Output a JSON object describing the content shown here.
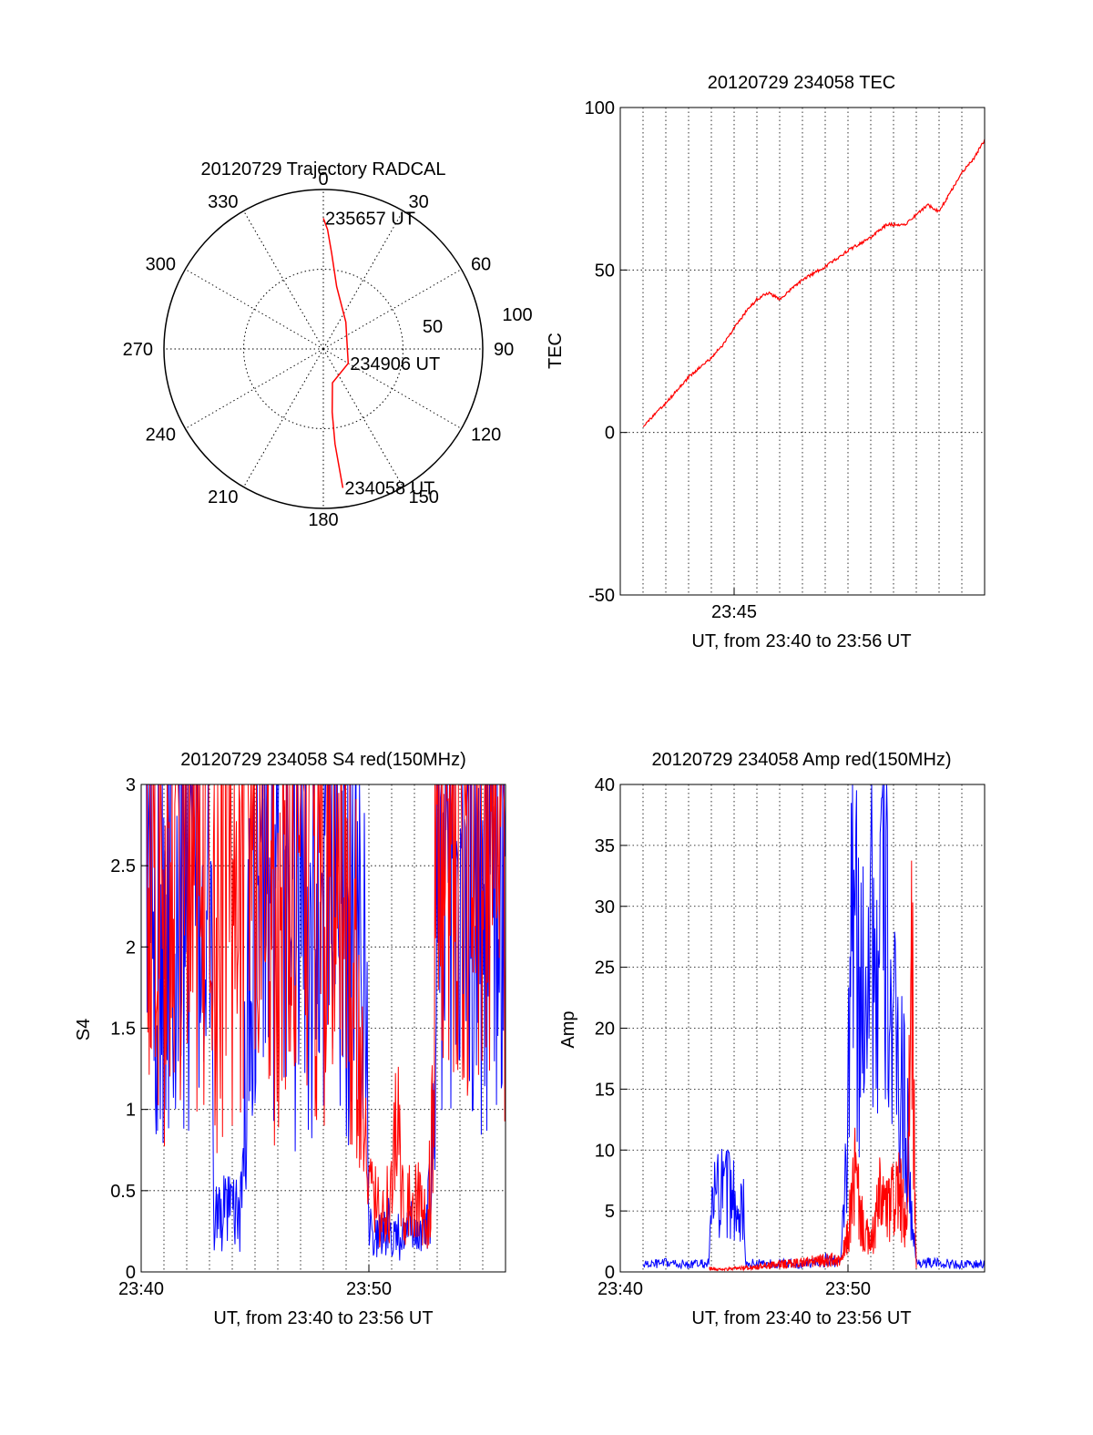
{
  "chart_data": [
    {
      "type": "polar",
      "title": "20120729 Trajectory RADCAL",
      "angle_labels": [
        "0",
        "30",
        "60",
        "90",
        "120",
        "150",
        "180",
        "210",
        "240",
        "270",
        "300",
        "330"
      ],
      "radius_labels": [
        "50",
        "100"
      ],
      "rlim": [
        0,
        100
      ],
      "grid": true,
      "trajectory": {
        "color": "#ff0000",
        "points": [
          {
            "az": 172,
            "zen": 88,
            "label": "234058 UT"
          },
          {
            "az": 173,
            "zen": 60
          },
          {
            "az": 172,
            "zen": 40
          },
          {
            "az": 165,
            "zen": 22
          },
          {
            "az": 120,
            "zen": 18,
            "label": "234906 UT"
          },
          {
            "az": 40,
            "zen": 22
          },
          {
            "az": 12,
            "zen": 40
          },
          {
            "az": 5,
            "zen": 60
          },
          {
            "az": 2,
            "zen": 75
          },
          {
            "az": 0,
            "zen": 82,
            "label": "235657 UT"
          }
        ]
      }
    },
    {
      "type": "line",
      "title": "20120729 234058 TEC",
      "xlabel": "UT, from 23:40 to 23:56 UT",
      "ylabel": "TEC",
      "xlim": [
        0,
        16
      ],
      "ylim": [
        -50,
        100
      ],
      "xticks": [
        {
          "value": 5,
          "label": "23:45"
        }
      ],
      "yticks": [
        -50,
        0,
        50,
        100
      ],
      "grid": true,
      "series": [
        {
          "color": "#ff0000",
          "x": [
            1.0,
            1.3,
            2.0,
            3.0,
            4.0,
            4.5,
            5.0,
            5.5,
            6.0,
            6.5,
            7.0,
            8.0,
            9.0,
            10.0,
            11.0,
            11.7,
            12.5,
            13.0,
            13.5,
            14.0,
            14.5,
            15.0,
            15.5,
            16.0
          ],
          "y": [
            2,
            4,
            9,
            17,
            23,
            27,
            32,
            37,
            41,
            43,
            41,
            47,
            51,
            56,
            60,
            64,
            64,
            67,
            70,
            68,
            74,
            80,
            84,
            90
          ]
        }
      ]
    },
    {
      "type": "line",
      "title": "20120729 234058 S4 red(150MHz)",
      "xlabel": "UT, from 23:40 to 23:56 UT",
      "ylabel": "S4",
      "xlim": [
        0,
        16
      ],
      "ylim": [
        0,
        3
      ],
      "xticks": [
        {
          "value": 0,
          "label": "23:40"
        },
        {
          "value": 10,
          "label": "23:50"
        }
      ],
      "yticks": [
        "0",
        "0.5",
        "1",
        "1.5",
        "2",
        "2.5",
        "3"
      ],
      "grid": true,
      "series": [
        {
          "color": "#0000ff",
          "x": [
            0.2,
            1.0,
            2.0,
            3.0,
            3.2,
            3.5,
            4.0,
            4.4,
            4.6,
            5.0,
            6.0,
            7.0,
            8.0,
            9.0,
            9.8,
            10.0,
            10.5,
            11.0,
            11.5,
            12.0,
            12.5,
            12.8,
            13.0,
            13.5,
            14.0,
            15.0,
            16.0
          ],
          "y": [
            2.7,
            2.5,
            2.6,
            2.4,
            0.36,
            0.35,
            0.36,
            0.37,
            1.3,
            2.5,
            2.6,
            2.4,
            2.7,
            2.5,
            2.6,
            0.28,
            0.22,
            0.3,
            0.2,
            0.28,
            0.22,
            0.6,
            2.5,
            2.7,
            2.6,
            2.5,
            2.6
          ]
        },
        {
          "color": "#ff0000",
          "x": [
            0.2,
            1.0,
            2.0,
            3.0,
            4.0,
            5.0,
            6.0,
            7.0,
            8.0,
            9.0,
            10.0,
            10.5,
            11.0,
            11.2,
            11.5,
            12.0,
            12.5,
            12.8,
            13.0,
            14.0,
            15.0,
            16.0
          ],
          "y": [
            3.0,
            2.2,
            2.8,
            2.3,
            2.6,
            2.9,
            2.4,
            2.8,
            2.5,
            2.7,
            0.45,
            0.35,
            0.5,
            0.95,
            0.4,
            0.45,
            0.35,
            0.8,
            2.9,
            2.7,
            2.8,
            2.6
          ]
        }
      ]
    },
    {
      "type": "line",
      "title": "20120729 234058 Amp red(150MHz)",
      "xlabel": "UT, from 23:40 to 23:56 UT",
      "ylabel": "Amp",
      "xlim": [
        0,
        16
      ],
      "ylim": [
        0,
        40
      ],
      "xticks": [
        {
          "value": 0,
          "label": "23:40"
        },
        {
          "value": 10,
          "label": "23:50"
        }
      ],
      "yticks": [
        "0",
        "5",
        "10",
        "15",
        "20",
        "25",
        "30",
        "35",
        "40"
      ],
      "grid": true,
      "series": [
        {
          "color": "#0000ff",
          "x": [
            1.0,
            2.0,
            3.0,
            3.9,
            4.0,
            4.5,
            5.0,
            5.4,
            5.5,
            6.0,
            7.0,
            8.0,
            9.0,
            9.7,
            10.0,
            10.2,
            10.5,
            10.8,
            11.0,
            11.3,
            11.5,
            11.8,
            12.0,
            12.3,
            12.6,
            12.8,
            13.0,
            14.0,
            15.0,
            16.0
          ],
          "y": [
            0.6,
            0.7,
            0.6,
            0.7,
            5.5,
            6.5,
            6.0,
            5.5,
            0.6,
            0.7,
            0.7,
            0.6,
            1.0,
            0.8,
            12.0,
            33.0,
            20.0,
            28.0,
            33.0,
            22.0,
            32.0,
            25.0,
            18.0,
            16.0,
            12.0,
            4.0,
            0.8,
            0.7,
            0.6,
            0.6
          ]
        },
        {
          "color": "#ff0000",
          "x": [
            3.9,
            4.5,
            5.3,
            9.3,
            9.7,
            10.0,
            10.3,
            10.6,
            11.0,
            11.4,
            11.8,
            12.2,
            12.6,
            12.8,
            13.0
          ],
          "y": [
            0.3,
            0.2,
            0.3,
            1.0,
            0.8,
            3.0,
            8.0,
            4.0,
            2.0,
            6.0,
            5.0,
            7.0,
            3.0,
            25.0,
            0.5
          ]
        }
      ]
    }
  ]
}
